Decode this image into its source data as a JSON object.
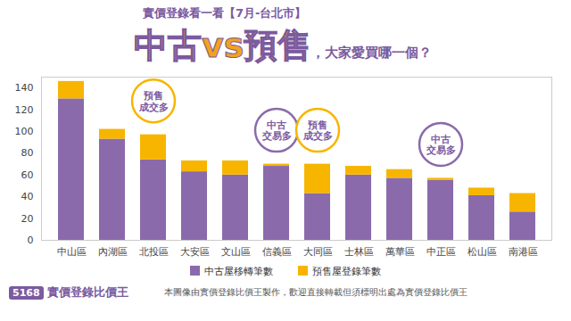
{
  "chart_data": {
    "type": "bar",
    "stacked": true,
    "header": "實價登錄看一看【7月-台北市】",
    "title": "中古vs預售",
    "subtitle": "，大家愛買哪一個？",
    "categories": [
      "中山區",
      "內湖區",
      "北投區",
      "大安區",
      "文山區",
      "信義區",
      "大同區",
      "士林區",
      "萬華區",
      "中正區",
      "松山區",
      "南港區"
    ],
    "series": [
      {
        "name": "中古屋移轉筆數",
        "color": "#8a6aab",
        "values": [
          130,
          93,
          74,
          63,
          60,
          68,
          43,
          60,
          57,
          55,
          41,
          26
        ]
      },
      {
        "name": "預售屋登錄筆數",
        "color": "#f7b500",
        "values": [
          16,
          9,
          23,
          10,
          13,
          2,
          27,
          8,
          8,
          2,
          7,
          17
        ]
      }
    ],
    "ylim": [
      0,
      150
    ],
    "yticks": [
      0,
      20,
      40,
      60,
      80,
      100,
      120,
      140
    ],
    "grid": false,
    "legend": "bottom",
    "annotations": [
      {
        "category": "北投區",
        "text": "預售\n成交多",
        "color": "#f7b500"
      },
      {
        "category": "信義區",
        "text": "中古\n交易多",
        "color": "#8a6aab"
      },
      {
        "category": "大同區",
        "text": "預售\n成交多",
        "color": "#f7b500"
      },
      {
        "category": "中正區",
        "text": "中古\n交易多",
        "color": "#8a6aab"
      }
    ],
    "brand_number": "5168",
    "brand_name": "實價登錄比價王",
    "note": "本圖像由實價登錄比價王製作，歡迎直接轉載但須標明出處為實價登錄比價王"
  }
}
